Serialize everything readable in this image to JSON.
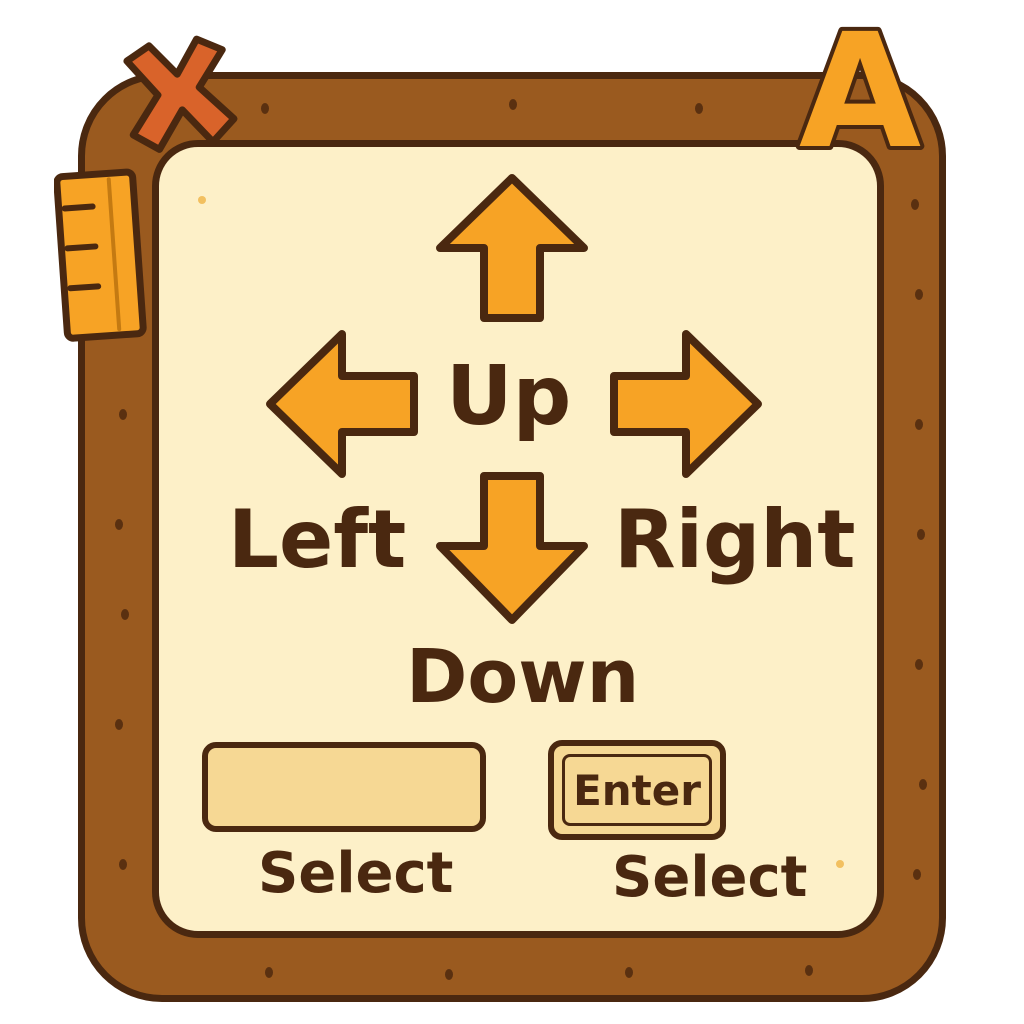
{
  "dpad": {
    "up_label": "Up",
    "down_label": "Down",
    "left_label": "Left",
    "right_label": "Right"
  },
  "controls": {
    "input_value": "",
    "input_caption": "Select",
    "enter_label": "Enter",
    "enter_caption": "Select"
  },
  "badges": {
    "letter": "A"
  },
  "colors": {
    "wood": "#9a5a1f",
    "outline": "#4a2810",
    "panel": "#fdf0c8",
    "arrow": "#f7a325",
    "close_badge": "#d9632a",
    "key_fill": "#f6d894"
  },
  "icons": {
    "up": "arrow-up-icon",
    "down": "arrow-down-icon",
    "left": "arrow-left-icon",
    "right": "arrow-right-icon",
    "close": "close-icon",
    "ruler": "ruler-icon"
  }
}
